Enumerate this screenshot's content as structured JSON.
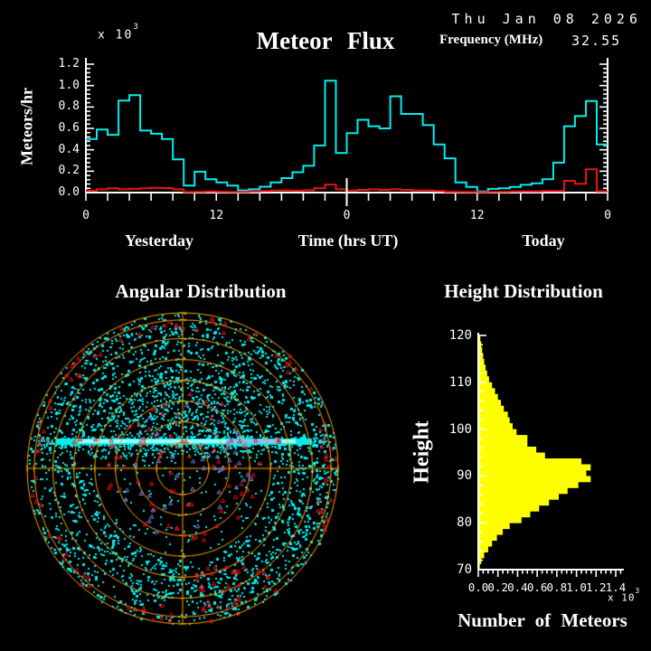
{
  "header": {
    "title": "Meteor Flux",
    "date": "Thu Jan 08 2026",
    "frequency_label": "Frequency (MHz)",
    "frequency_value": "32.55"
  },
  "colors": {
    "background": "#000000",
    "rate_line": "#00EEEE",
    "secondary_line": "#EE1111",
    "histogram": "#FFFF00",
    "polar_grid": "#FFA000",
    "axis": "#FFFFFF",
    "band_core": "#9CFFFF",
    "band_patch": "#9DB9FF",
    "blue_points": "#7788EE"
  },
  "chart_data": [
    {
      "id": "flux",
      "type": "line",
      "style": "step",
      "ylabel": "Meteors/hr",
      "xlabel": "Time (hrs UT)",
      "scale_base": "x 10",
      "scale_exp": "3",
      "day_labels": [
        "Yesterday",
        "Today"
      ],
      "xtick_labels": [
        "0",
        "12",
        "0",
        "12",
        "0"
      ],
      "ytick_labels": [
        "0.0",
        "0.2",
        "0.4",
        "0.6",
        "0.8",
        "1.0",
        "1.2"
      ],
      "ylim": [
        0,
        1.2
      ],
      "hours_total": 48,
      "series": [
        {
          "name": "meteor-rate-cyan",
          "color": "#00EEEE",
          "values": [
            0.5,
            0.59,
            0.54,
            0.86,
            0.91,
            0.58,
            0.55,
            0.5,
            0.31,
            0.065,
            0.195,
            0.125,
            0.095,
            0.065,
            0.02,
            0.03,
            0.055,
            0.095,
            0.135,
            0.19,
            0.25,
            0.44,
            1.045,
            0.37,
            0.555,
            0.68,
            0.62,
            0.6,
            0.9,
            0.735,
            0.735,
            0.63,
            0.45,
            0.32,
            0.095,
            0.053,
            0.011,
            0.035,
            0.04,
            0.053,
            0.073,
            0.087,
            0.124,
            0.28,
            0.62,
            0.715,
            0.855,
            0.45
          ]
        },
        {
          "name": "background-rate-red",
          "color": "#EE1111",
          "values": [
            0.018,
            0.03,
            0.04,
            0.03,
            0.035,
            0.04,
            0.045,
            0.042,
            0.03,
            0.005,
            0.008,
            0.01,
            0.008,
            0.006,
            0.006,
            0.01,
            0.014,
            0.02,
            0.02,
            0.018,
            0.022,
            0.04,
            0.075,
            0.03,
            0.02,
            0.025,
            0.03,
            0.025,
            0.03,
            0.025,
            0.02,
            0.02,
            0.015,
            0.008,
            0.006,
            0.005,
            0.004,
            0.006,
            0.008,
            0.01,
            0.012,
            0.012,
            0.014,
            0.015,
            0.11,
            0.082,
            0.217,
            0.012
          ]
        }
      ]
    },
    {
      "id": "angular",
      "type": "scatter-polar",
      "title": "Angular Distribution",
      "rings": [
        0.168,
        0.3,
        0.432,
        0.565,
        0.7,
        0.835,
        0.955,
        1.0
      ],
      "seed": 1337,
      "points": {
        "cyan_outer": 2000,
        "cyan_upper": 800,
        "cyan_inner": 220,
        "band_scatter": 480,
        "red_horizon": 95,
        "red_inner": 60,
        "red_cluster": 30,
        "red_band": 22,
        "blue_inner": 48
      },
      "band": {
        "y_offset": -30,
        "x_from": -140,
        "x_to": 143,
        "core_thickness": 7
      }
    },
    {
      "id": "height",
      "type": "bar-horizontal",
      "title": "Height Distribution",
      "ylabel": "Height",
      "xlabel": "Number of Meteors",
      "scale_base": "x 10",
      "scale_exp": "3",
      "ytick_labels": [
        "70",
        "80",
        "90",
        "100",
        "110",
        "120"
      ],
      "xtick_labels": [
        "0.0",
        "0.2",
        "0.4",
        "0.6",
        "0.8",
        "1.0",
        "1.2",
        "1.4"
      ],
      "ylim": [
        70,
        120
      ],
      "xlim": [
        0,
        1.4
      ],
      "bin_start": 70,
      "bin_width": 1.25,
      "values": [
        0.015,
        0.03,
        0.06,
        0.1,
        0.14,
        0.19,
        0.25,
        0.32,
        0.44,
        0.53,
        0.62,
        0.72,
        0.82,
        0.91,
        1.02,
        1.145,
        1.1,
        1.145,
        1.05,
        0.68,
        0.59,
        0.5,
        0.5,
        0.39,
        0.35,
        0.32,
        0.3,
        0.26,
        0.23,
        0.2,
        0.17,
        0.14,
        0.11,
        0.09,
        0.075,
        0.06,
        0.05,
        0.04,
        0.03,
        0.02
      ]
    }
  ]
}
